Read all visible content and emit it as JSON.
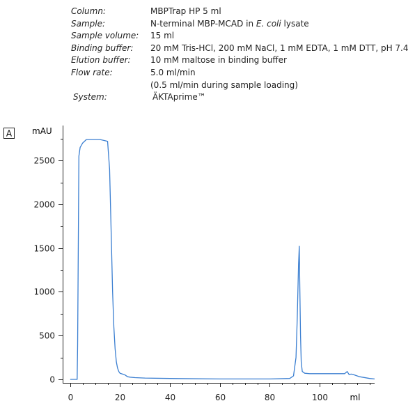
{
  "conditions": [
    {
      "label": "Column:",
      "lines": [
        [
          "MBPTrap HP 5 ml",
          ""
        ]
      ]
    },
    {
      "label": "Sample:",
      "lines": [
        [
          "N-terminal MBP-MCAD in ",
          "E. coli",
          " lysate"
        ]
      ]
    },
    {
      "label": "Sample volume:",
      "lines": [
        [
          "15 ml"
        ]
      ]
    },
    {
      "label": "Binding buffer:",
      "lines": [
        [
          "20 mM Tris-HCl, 200 mM NaCl, 1 mM EDTA, 1 mM DTT, pH 7.4"
        ]
      ]
    },
    {
      "label": "Elution buffer:",
      "lines": [
        [
          "10 mM maltose in binding buffer"
        ]
      ]
    },
    {
      "label": "Flow rate:",
      "lines": [
        [
          "5.0 ml/min"
        ],
        [
          "(0.5 ml/min during sample loading)"
        ]
      ]
    },
    {
      "label": "System:",
      "lines": [
        [
          "ÄKTAprime™"
        ]
      ]
    }
  ],
  "panel_label": "A",
  "colors": {
    "trace": "#3b7fd1",
    "axis": "#222222",
    "text": "#222222"
  },
  "chart_data": {
    "type": "line",
    "ylabel": "mAU",
    "xlabel": "ml",
    "xlim": [
      -3,
      122
    ],
    "ylim": [
      -40,
      2900
    ],
    "xticks": [
      0,
      20,
      40,
      60,
      80,
      100
    ],
    "yticks": [
      0,
      500,
      1000,
      1500,
      2000,
      2500
    ],
    "x_minor_step": 5,
    "y_minor_step": 250,
    "series": [
      {
        "x": [
          0,
          2.8,
          3.0,
          3.5,
          4.0,
          5.0,
          6.5,
          8.0,
          12.0,
          15.0,
          15.8,
          16.5,
          17.0,
          17.5,
          18.0,
          18.5,
          19.0,
          19.5,
          20.0,
          21.0,
          22.0,
          23.0,
          24.0,
          26.0,
          30.0,
          40.0,
          60.0,
          80.0,
          88.0,
          89.5,
          90.5,
          91.0,
          91.5,
          91.8,
          92.0,
          92.3,
          92.6,
          93.0,
          94.0,
          96.0,
          100.0,
          110.0,
          111.0,
          111.8,
          112.6,
          113.5,
          116.0,
          120.0,
          124.0,
          130.0
        ],
        "y": [
          0,
          0,
          400,
          2550,
          2650,
          2700,
          2740,
          2740,
          2740,
          2720,
          2400,
          1600,
          1000,
          600,
          350,
          200,
          130,
          90,
          70,
          60,
          50,
          30,
          25,
          20,
          15,
          10,
          5,
          5,
          10,
          40,
          250,
          700,
          1300,
          1520,
          1100,
          500,
          200,
          90,
          70,
          65,
          65,
          65,
          90,
          55,
          60,
          55,
          30,
          10,
          5,
          5
        ]
      }
    ]
  }
}
